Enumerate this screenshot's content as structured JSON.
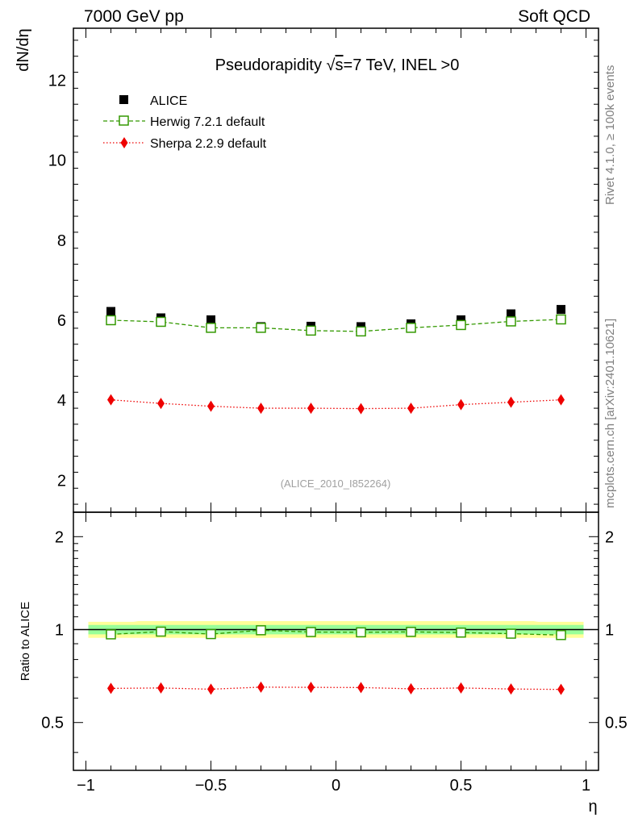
{
  "header": {
    "left": "7000 GeV pp",
    "right": "Soft QCD"
  },
  "side_labels": {
    "rivet": "Rivet 4.1.0, ≥ 100k events",
    "mcplots": "mcplots.cern.ch [arXiv:2401.10621]"
  },
  "chart_data": [
    {
      "type": "scatter",
      "title": "Pseudorapidity √s=7 TeV, INEL >0",
      "title_parts": {
        "pre": "Pseudorapidity ",
        "sqrt": "√",
        "s": "s",
        "post": "=7 TeV, INEL >0"
      },
      "ylabel": "dN/dη",
      "xlabel": "",
      "xlim": [
        -1.05,
        1.05
      ],
      "ylim": [
        1.2,
        13.3
      ],
      "yticks": [
        2,
        4,
        6,
        8,
        10,
        12
      ],
      "yticklabels": [
        "2",
        "4",
        "6",
        "8",
        "10",
        "12"
      ],
      "watermark": "(ALICE_2010_I852264)",
      "x": [
        -0.9,
        -0.7,
        -0.5,
        -0.3,
        -0.1,
        0.1,
        0.3,
        0.5,
        0.7,
        0.9
      ],
      "series": [
        {
          "name": "ALICE",
          "style": "data",
          "color": "#000000",
          "values": [
            6.22,
            6.06,
            6.01,
            5.84,
            5.85,
            5.84,
            5.91,
            6.01,
            6.16,
            6.27
          ]
        },
        {
          "name": "Herwig 7.2.1 default",
          "style": "open-square-dashed",
          "color": "#339900",
          "values": [
            6.0,
            5.96,
            5.81,
            5.81,
            5.74,
            5.72,
            5.81,
            5.88,
            5.97,
            6.02
          ]
        },
        {
          "name": "Sherpa 2.2.9 default",
          "style": "diamond-dotted",
          "color": "#ee0000",
          "values": [
            4.01,
            3.92,
            3.85,
            3.8,
            3.8,
            3.79,
            3.8,
            3.89,
            3.95,
            4.01
          ]
        }
      ],
      "legend": {
        "placement": "top-left"
      }
    },
    {
      "type": "scatter",
      "title": "",
      "ylabel": "Ratio to ALICE",
      "xlabel": "η",
      "xlim": [
        -1.05,
        1.05
      ],
      "ylim": [
        0.35,
        2.4
      ],
      "yscale": "log",
      "yticks": [
        0.5,
        1,
        2
      ],
      "yticklabels": [
        "0.5",
        "1",
        "2"
      ],
      "xticks": [
        -1,
        -0.5,
        0,
        0.5,
        1
      ],
      "xticklabels": [
        "−1",
        "−0.5",
        "0",
        "0.5",
        "1"
      ],
      "x": [
        -0.9,
        -0.7,
        -0.5,
        -0.3,
        -0.1,
        0.1,
        0.3,
        0.5,
        0.7,
        0.9
      ],
      "band_inner": {
        "color": "#99ff99",
        "values_lo": [
          0.965,
          0.965,
          0.965,
          0.965,
          0.965,
          0.965,
          0.965,
          0.965,
          0.965,
          0.965
        ],
        "values_hi": [
          1.035,
          1.035,
          1.035,
          1.035,
          1.035,
          1.035,
          1.035,
          1.035,
          1.035,
          1.035
        ]
      },
      "band_outer": {
        "color": "#ffff99",
        "values_lo": [
          0.94,
          0.94,
          0.94,
          0.94,
          0.94,
          0.94,
          0.94,
          0.94,
          0.94,
          0.94
        ],
        "values_hi": [
          1.06,
          1.065,
          1.065,
          1.065,
          1.065,
          1.065,
          1.065,
          1.065,
          1.065,
          1.06
        ]
      },
      "series": [
        {
          "name": "Herwig 7.2.1 default",
          "style": "open-square-dashed",
          "color": "#339900",
          "values": [
            0.965,
            0.985,
            0.967,
            0.995,
            0.982,
            0.98,
            0.983,
            0.978,
            0.97,
            0.96
          ]
        },
        {
          "name": "Sherpa 2.2.9 default",
          "style": "diamond-dotted",
          "color": "#ee0000",
          "values": [
            0.645,
            0.647,
            0.641,
            0.651,
            0.65,
            0.649,
            0.643,
            0.647,
            0.642,
            0.64
          ]
        }
      ]
    }
  ]
}
